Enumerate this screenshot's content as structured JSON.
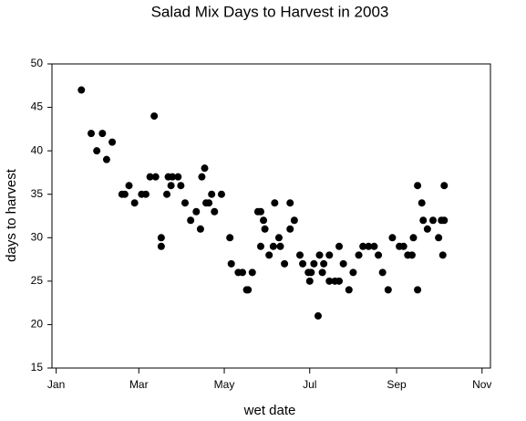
{
  "chart_data": {
    "type": "scatter",
    "title": "Salad Mix Days to Harvest in 2003",
    "x_label": "wet date",
    "y_label": "days to harvest",
    "color": "#000000",
    "xlim": [
      -3,
      310
    ],
    "xticks": [
      {
        "value": 0,
        "label": "Jan"
      },
      {
        "value": 59,
        "label": "Mar"
      },
      {
        "value": 120,
        "label": "May"
      },
      {
        "value": 181,
        "label": "Jul"
      },
      {
        "value": 243,
        "label": "Sep"
      },
      {
        "value": 304,
        "label": "Nov"
      }
    ],
    "ylim": [
      15,
      50
    ],
    "yticks": [
      15,
      20,
      25,
      30,
      35,
      40,
      45,
      50
    ],
    "grid": false,
    "x": [
      18,
      25,
      29,
      33,
      36,
      40,
      47,
      49,
      52,
      56,
      61,
      64,
      67,
      70,
      71,
      75,
      75,
      79,
      80,
      82,
      83,
      87,
      89,
      92,
      96,
      100,
      103,
      104,
      106,
      107,
      109,
      111,
      113,
      118,
      124,
      125,
      130,
      133,
      136,
      137,
      140,
      144,
      146,
      146,
      148,
      149,
      152,
      155,
      156,
      159,
      160,
      163,
      167,
      167,
      170,
      174,
      176,
      180,
      181,
      182,
      184,
      187,
      188,
      190,
      191,
      195,
      195,
      199,
      202,
      202,
      205,
      209,
      212,
      216,
      219,
      223,
      227,
      230,
      233,
      237,
      240,
      245,
      248,
      251,
      254,
      255,
      258,
      258,
      261,
      262,
      265,
      269,
      273,
      275,
      276,
      277,
      277
    ],
    "values": [
      47,
      42,
      40,
      42,
      39,
      41,
      35,
      35,
      36,
      34,
      35,
      35,
      37,
      44,
      37,
      30,
      29,
      35,
      37,
      36,
      37,
      37,
      36,
      34,
      32,
      33,
      31,
      37,
      38,
      34,
      34,
      35,
      33,
      35,
      30,
      27,
      26,
      26,
      24,
      24,
      26,
      33,
      33,
      29,
      32,
      31,
      28,
      29,
      34,
      30,
      29,
      27,
      34,
      31,
      32,
      28,
      27,
      26,
      25,
      26,
      27,
      21,
      28,
      26,
      27,
      28,
      25,
      25,
      29,
      25,
      27,
      24,
      26,
      28,
      29,
      29,
      29,
      28,
      26,
      24,
      30,
      29,
      29,
      28,
      28,
      30,
      36,
      24,
      34,
      32,
      31,
      32,
      30,
      32,
      28,
      36,
      32
    ]
  }
}
